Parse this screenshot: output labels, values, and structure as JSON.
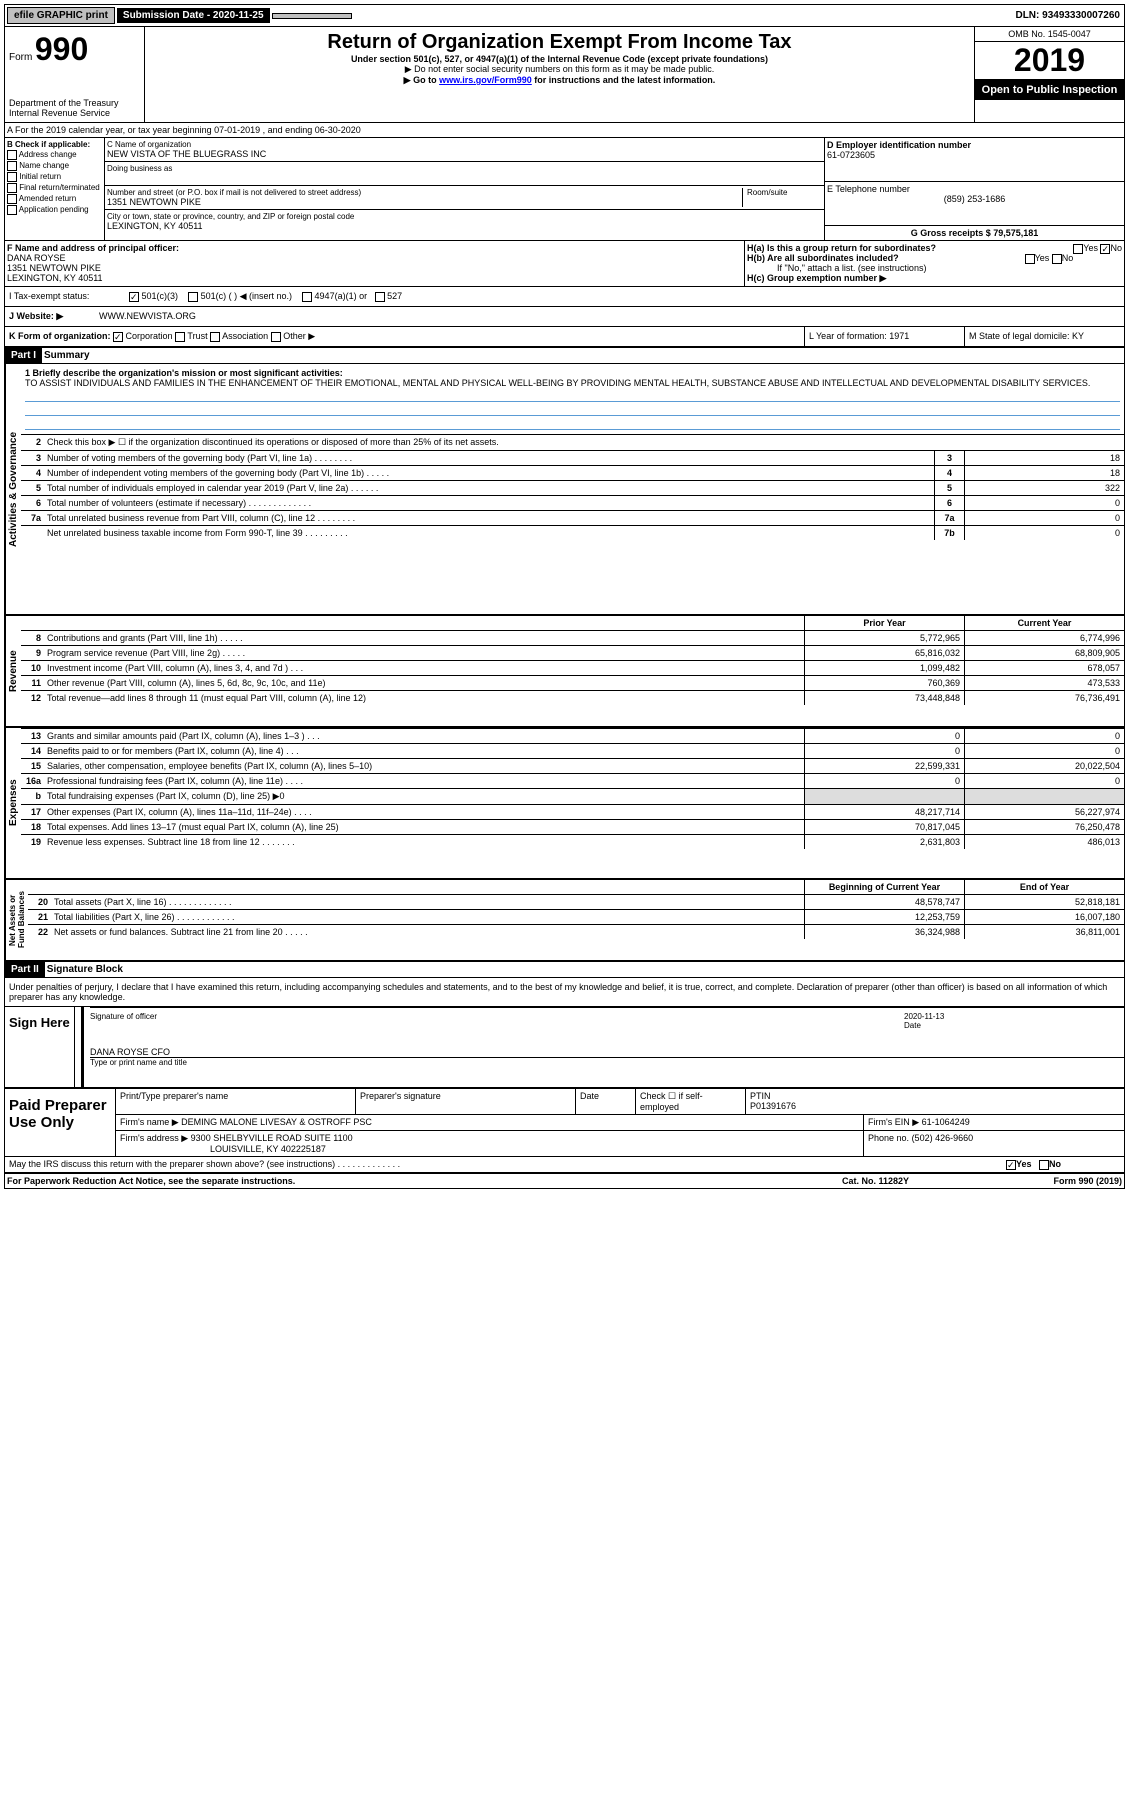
{
  "topbar": {
    "efile": "efile GRAPHIC print",
    "subdate_label": "Submission Date - 2020-11-25",
    "dln": "DLN: 93493330007260"
  },
  "header": {
    "form_prefix": "Form",
    "form_number": "990",
    "title": "Return of Organization Exempt From Income Tax",
    "subtitle": "Under section 501(c), 527, or 4947(a)(1) of the Internal Revenue Code (except private foundations)",
    "note1": "▶ Do not enter social security numbers on this form as it may be made public.",
    "note2_pre": "▶ Go to ",
    "note2_link": "www.irs.gov/Form990",
    "note2_post": " for instructions and the latest information.",
    "omb": "OMB No. 1545-0047",
    "year": "2019",
    "open": "Open to Public Inspection",
    "dept": "Department of the Treasury Internal Revenue Service"
  },
  "row_a": "A For the 2019 calendar year, or tax year beginning 07-01-2019   , and ending 06-30-2020",
  "section_b": {
    "b_label": "B Check if applicable:",
    "checks": [
      "Address change",
      "Name change",
      "Initial return",
      "Final return/terminated",
      "Amended return",
      "Application pending"
    ],
    "c_name_label": "C Name of organization",
    "c_name": "NEW VISTA OF THE BLUEGRASS INC",
    "dba_label": "Doing business as",
    "addr_label": "Number and street (or P.O. box if mail is not delivered to street address)",
    "room_label": "Room/suite",
    "addr": "1351 NEWTOWN PIKE",
    "city_label": "City or town, state or province, country, and ZIP or foreign postal code",
    "city": "LEXINGTON, KY  40511",
    "d_ein_label": "D Employer identification number",
    "d_ein": "61-0723605",
    "e_tel_label": "E Telephone number",
    "e_tel": "(859) 253-1686",
    "g_gross_label": "G Gross receipts $ 79,575,181"
  },
  "officer": {
    "f_label": "F  Name and address of principal officer:",
    "name": "DANA ROYSE",
    "addr1": "1351 NEWTOWN PIKE",
    "addr2": "LEXINGTON, KY  40511",
    "ha": "H(a)  Is this a group return for subordinates?",
    "ha_yes": "Yes",
    "ha_no": "No",
    "hb": "H(b)  Are all subordinates included?",
    "hb_note": "If \"No,\" attach a list. (see instructions)",
    "hc": "H(c)  Group exemption number ▶"
  },
  "tax_status": {
    "i_label": "I  Tax-exempt status:",
    "c3": "501(c)(3)",
    "c": "501(c) (  ) ◀ (insert no.)",
    "a1": "4947(a)(1) or",
    "s527": "527"
  },
  "website": {
    "j_label": "J  Website: ▶",
    "url": "WWW.NEWVISTA.ORG"
  },
  "k_row": {
    "k": "K Form of organization:",
    "corp": "Corporation",
    "trust": "Trust",
    "assoc": "Association",
    "other": "Other ▶",
    "l": "L Year of formation: 1971",
    "m": "M State of legal domicile: KY"
  },
  "part1": {
    "header": "Part I",
    "title": "Summary",
    "line1_label": "1  Briefly describe the organization's mission or most significant activities:",
    "mission": "TO ASSIST INDIVIDUALS AND FAMILIES IN THE ENHANCEMENT OF THEIR EMOTIONAL, MENTAL AND PHYSICAL WELL-BEING BY PROVIDING MENTAL HEALTH, SUBSTANCE ABUSE AND INTELLECTUAL AND DEVELOPMENTAL DISABILITY SERVICES.",
    "line2": "Check this box ▶ ☐  if the organization discontinued its operations or disposed of more than 25% of its net assets.",
    "vert_ag": "Activities & Governance",
    "vert_rev": "Revenue",
    "vert_exp": "Expenses",
    "vert_net": "Net Assets or Fund Balances",
    "gov_rows": [
      {
        "n": "3",
        "d": "Number of voting members of the governing body (Part VI, line 1a)  .  .  .  .  .  .  .  .",
        "box": "3",
        "v": "18"
      },
      {
        "n": "4",
        "d": "Number of independent voting members of the governing body (Part VI, line 1b)  .  .  .  .  .",
        "box": "4",
        "v": "18"
      },
      {
        "n": "5",
        "d": "Total number of individuals employed in calendar year 2019 (Part V, line 2a)  .  .  .  .  .  .",
        "box": "5",
        "v": "322"
      },
      {
        "n": "6",
        "d": "Total number of volunteers (estimate if necessary)   .  .  .  .  .  .  .  .  .  .  .  .  .",
        "box": "6",
        "v": "0"
      },
      {
        "n": "7a",
        "d": "Total unrelated business revenue from Part VIII, column (C), line 12  .  .  .  .  .  .  .  .",
        "box": "7a",
        "v": "0"
      },
      {
        "n": "",
        "d": "Net unrelated business taxable income from Form 990-T, line 39   .  .  .  .  .  .  .  .  .",
        "box": "7b",
        "v": "0"
      }
    ],
    "prior_head": "Prior Year",
    "curr_head": "Current Year",
    "rev_rows": [
      {
        "n": "8",
        "d": "Contributions and grants (Part VIII, line 1h)  .  .  .  .  .",
        "py": "5,772,965",
        "cy": "6,774,996"
      },
      {
        "n": "9",
        "d": "Program service revenue (Part VIII, line 2g)  .  .  .  .  .",
        "py": "65,816,032",
        "cy": "68,809,905"
      },
      {
        "n": "10",
        "d": "Investment income (Part VIII, column (A), lines 3, 4, and 7d )  .  .  .",
        "py": "1,099,482",
        "cy": "678,057"
      },
      {
        "n": "11",
        "d": "Other revenue (Part VIII, column (A), lines 5, 6d, 8c, 9c, 10c, and 11e)",
        "py": "760,369",
        "cy": "473,533"
      },
      {
        "n": "12",
        "d": "Total revenue—add lines 8 through 11 (must equal Part VIII, column (A), line 12)",
        "py": "73,448,848",
        "cy": "76,736,491"
      }
    ],
    "exp_rows": [
      {
        "n": "13",
        "d": "Grants and similar amounts paid (Part IX, column (A), lines 1–3 )  .  .  .",
        "py": "0",
        "cy": "0"
      },
      {
        "n": "14",
        "d": "Benefits paid to or for members (Part IX, column (A), line 4)  .  .  .",
        "py": "0",
        "cy": "0"
      },
      {
        "n": "15",
        "d": "Salaries, other compensation, employee benefits (Part IX, column (A), lines 5–10)",
        "py": "22,599,331",
        "cy": "20,022,504"
      },
      {
        "n": "16a",
        "d": "Professional fundraising fees (Part IX, column (A), line 11e)  .  .  .  .",
        "py": "0",
        "cy": "0"
      },
      {
        "n": "b",
        "d": "Total fundraising expenses (Part IX, column (D), line 25) ▶0",
        "py": "",
        "cy": "",
        "shade": true
      },
      {
        "n": "17",
        "d": "Other expenses (Part IX, column (A), lines 11a–11d, 11f–24e)  .  .  .  .",
        "py": "48,217,714",
        "cy": "56,227,974"
      },
      {
        "n": "18",
        "d": "Total expenses. Add lines 13–17 (must equal Part IX, column (A), line 25)",
        "py": "70,817,045",
        "cy": "76,250,478"
      },
      {
        "n": "19",
        "d": "Revenue less expenses. Subtract line 18 from line 12 .  .  .  .  .  .  .",
        "py": "2,631,803",
        "cy": "486,013"
      }
    ],
    "beg_head": "Beginning of Current Year",
    "end_head": "End of Year",
    "net_rows": [
      {
        "n": "20",
        "d": "Total assets (Part X, line 16)  .  .  .  .  .  .  .  .  .  .  .  .  .",
        "py": "48,578,747",
        "cy": "52,818,181"
      },
      {
        "n": "21",
        "d": "Total liabilities (Part X, line 26)  .  .  .  .  .  .  .  .  .  .  .  .",
        "py": "12,253,759",
        "cy": "16,007,180"
      },
      {
        "n": "22",
        "d": "Net assets or fund balances. Subtract line 21 from line 20  .  .  .  .  .",
        "py": "36,324,988",
        "cy": "36,811,001"
      }
    ]
  },
  "part2": {
    "header": "Part II",
    "title": "Signature Block",
    "decl": "Under penalties of perjury, I declare that I have examined this return, including accompanying schedules and statements, and to the best of my knowledge and belief, it is true, correct, and complete. Declaration of preparer (other than officer) is based on all information of which preparer has any knowledge.",
    "sign_here": "Sign Here",
    "sig_officer": "Signature of officer",
    "sig_date_label": "Date",
    "sig_date": "2020-11-13",
    "sig_name": "DANA ROYSE  CFO",
    "sig_type": "Type or print name and title",
    "paid": "Paid Preparer Use Only",
    "prep_name_label": "Print/Type preparer's name",
    "prep_sig_label": "Preparer's signature",
    "prep_date_label": "Date",
    "prep_check": "Check ☐ if self-employed",
    "ptin_label": "PTIN",
    "ptin": "P01391676",
    "firm_name_label": "Firm's name   ▶",
    "firm_name": "DEMING MALONE LIVESAY & OSTROFF PSC",
    "firm_ein_label": "Firm's EIN ▶",
    "firm_ein": "61-1064249",
    "firm_addr_label": "Firm's address ▶",
    "firm_addr1": "9300 SHELBYVILLE ROAD SUITE 1100",
    "firm_addr2": "LOUISVILLE, KY  402225187",
    "firm_phone_label": "Phone no.",
    "firm_phone": "(502) 426-9660",
    "discuss": "May the IRS discuss this return with the preparer shown above? (see instructions)   .  .  .  .  .  .  .  .  .  .  .  .  .",
    "discuss_yes": "Yes",
    "discuss_no": "No"
  },
  "footer": {
    "left": "For Paperwork Reduction Act Notice, see the separate instructions.",
    "mid": "Cat. No. 11282Y",
    "right": "Form 990 (2019)"
  }
}
